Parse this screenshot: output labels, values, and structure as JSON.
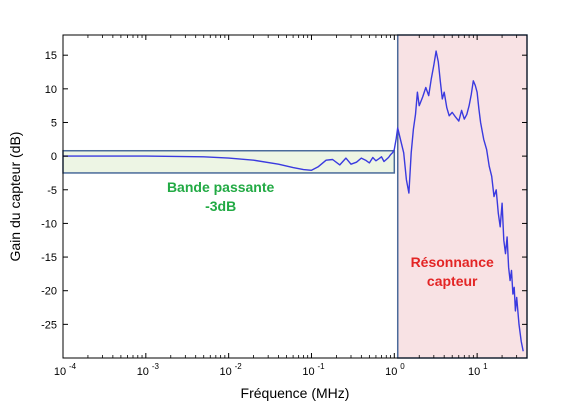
{
  "chart_data": {
    "type": "line",
    "xscale": "log",
    "xlabel": "Fréquence (MHz)",
    "ylabel": "Gain du capteur (dB)",
    "xlim": [
      0.0001,
      40
    ],
    "ylim": [
      -30,
      18
    ],
    "x_ticks": [
      {
        "base": "10",
        "exp": "-4",
        "value": 0.0001
      },
      {
        "base": "10",
        "exp": "-3",
        "value": 0.001
      },
      {
        "base": "10",
        "exp": "-2",
        "value": 0.01
      },
      {
        "base": "10",
        "exp": "-1",
        "value": 0.1
      },
      {
        "base": "10",
        "exp": "0",
        "value": 1
      },
      {
        "base": "10",
        "exp": "1",
        "value": 10
      }
    ],
    "y_ticks": [
      15,
      10,
      5,
      0,
      -5,
      -10,
      -15,
      -20,
      -25
    ],
    "series_color": "#3a3adf",
    "series": [
      {
        "x": [
          0.0001,
          0.001,
          0.005,
          0.01,
          0.02,
          0.04,
          0.06,
          0.08,
          0.1,
          0.12,
          0.15,
          0.18,
          0.22,
          0.26,
          0.3,
          0.35,
          0.4,
          0.45,
          0.5,
          0.55,
          0.6,
          0.65,
          0.7,
          0.75,
          0.8,
          0.85,
          0.9,
          0.95,
          1.0,
          1.05,
          1.1,
          1.2,
          1.3,
          1.4,
          1.5,
          1.6,
          1.7,
          1.8,
          1.9,
          2.0,
          2.2,
          2.4,
          2.6,
          2.8,
          3.0,
          3.2,
          3.4,
          3.6,
          3.8,
          4.0,
          4.3,
          4.6,
          5.0,
          5.5,
          6.0,
          6.5,
          7.0,
          7.5,
          8.0,
          8.5,
          9.0,
          9.5,
          10.0,
          10.5,
          11.0,
          12.0,
          13.0,
          14.0,
          15.0,
          16.0,
          17.0,
          18.0,
          19.0,
          20.0,
          21.0,
          22.0,
          23.0,
          24.0,
          25.0,
          26.0,
          27.0,
          28.0,
          29.0,
          30.0,
          32.0,
          34.0,
          36.0
        ],
        "y": [
          0.0,
          0.0,
          -0.1,
          -0.3,
          -0.6,
          -1.2,
          -1.7,
          -2.0,
          -2.1,
          -1.6,
          -0.6,
          -0.5,
          -1.3,
          -0.3,
          -1.2,
          -0.9,
          -0.3,
          -0.6,
          -1.0,
          -0.2,
          -0.7,
          -0.4,
          -0.1,
          -0.8,
          -0.5,
          -0.2,
          0.2,
          0.5,
          1.0,
          2.5,
          4.2,
          2.2,
          0.5,
          -3.5,
          -5.5,
          0.5,
          4.0,
          6.2,
          9.5,
          7.5,
          8.8,
          10.2,
          9.0,
          11.5,
          13.5,
          15.6,
          14.0,
          11.0,
          8.5,
          9.5,
          7.2,
          6.0,
          6.5,
          5.8,
          5.2,
          6.8,
          5.5,
          6.2,
          7.5,
          9.2,
          11.2,
          10.5,
          9.5,
          7.0,
          5.0,
          2.5,
          1.0,
          -1.5,
          -3.0,
          -6.0,
          -5.0,
          -8.5,
          -10.5,
          -7.0,
          -12.5,
          -14.5,
          -12.0,
          -16.5,
          -18.5,
          -17.0,
          -20.5,
          -19.5,
          -23.0,
          -21.0,
          -25.0,
          -27.5,
          -29.0
        ]
      }
    ],
    "regions": [
      {
        "label_lines": [
          "Bande passante",
          "-3dB"
        ],
        "x_start": 0.0001,
        "x_end": 1.0,
        "y_start": -2.5,
        "y_end": 0.8,
        "fill": "#edf5e4",
        "stroke": "#4a6a9a",
        "label_color": "#22aa44",
        "label_x": 0.008,
        "label_y": -5.3
      },
      {
        "label_lines": [
          "Résonnance",
          "capteur"
        ],
        "x_start": 1.1,
        "x_end": 40,
        "y_start": -30,
        "y_end": 18,
        "fill": "#f8e2e4",
        "stroke": "#4a6a9a",
        "label_color": "#e32525",
        "label_x": 5.0,
        "label_y": -16.5
      }
    ],
    "grid": false,
    "legend": "none"
  }
}
